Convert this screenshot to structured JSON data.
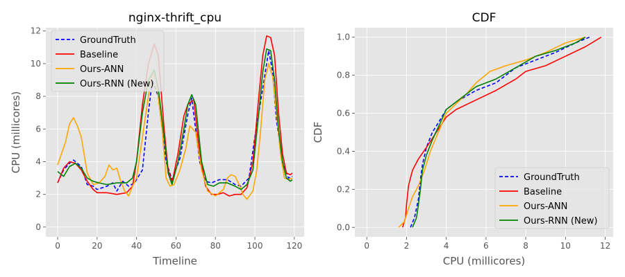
{
  "colors": {
    "groundtruth": "#0000ff",
    "baseline": "#ff0000",
    "ann": "#ffa500",
    "rnn": "#008000",
    "axes_bg": "#e5e5e5",
    "grid": "#ffffff",
    "tick_text": "#555555",
    "label_text": "#555555"
  },
  "chart_data": [
    {
      "type": "line",
      "title": "nginx-thrift_cpu",
      "xlabel": "Timeline",
      "ylabel": "CPU (millicores)",
      "xlim": [
        -6,
        125
      ],
      "ylim": [
        -0.6,
        12.2
      ],
      "xticks": [
        0,
        20,
        40,
        60,
        80,
        100,
        120
      ],
      "yticks": [
        0,
        2,
        4,
        6,
        8,
        10,
        12
      ],
      "grid": true,
      "legend_position": "top-left",
      "series": [
        {
          "name": "GroundTruth",
          "style": "dashed",
          "color": "#0000ff",
          "x": [
            0,
            3,
            6,
            8,
            12,
            15,
            18,
            20,
            25,
            28,
            30,
            33,
            36,
            39,
            43,
            46,
            48,
            51,
            55,
            58,
            62,
            66,
            68,
            72,
            75,
            78,
            82,
            86,
            90,
            93,
            97,
            100,
            104,
            107,
            109,
            111,
            114,
            117,
            119
          ],
          "y": [
            2.7,
            3.5,
            3.9,
            4.1,
            3.7,
            2.6,
            2.5,
            2.3,
            2.5,
            2.7,
            2.2,
            2.8,
            2.5,
            2.7,
            3.5,
            7.0,
            9.0,
            8.0,
            4.0,
            2.9,
            4.2,
            6.9,
            7.9,
            4.0,
            2.8,
            2.7,
            2.9,
            2.9,
            2.6,
            2.5,
            3.0,
            5.5,
            8.5,
            10.8,
            9.5,
            6.5,
            4.0,
            3.0,
            3.1
          ]
        },
        {
          "name": "Baseline",
          "style": "solid",
          "color": "#ff0000",
          "x": [
            0,
            3,
            6,
            9,
            12,
            15,
            18,
            20,
            25,
            30,
            35,
            38,
            40,
            43,
            46,
            49,
            51,
            54,
            56,
            58,
            61,
            64,
            66,
            69,
            72,
            75,
            78,
            81,
            84,
            87,
            90,
            93,
            96,
            99,
            102,
            104,
            106,
            108,
            110,
            112,
            114,
            116,
            118,
            119
          ],
          "y": [
            2.7,
            3.6,
            4.0,
            3.9,
            3.5,
            2.8,
            2.3,
            2.1,
            2.1,
            2.0,
            2.1,
            2.5,
            4.0,
            7.5,
            10.0,
            11.2,
            10.5,
            6.0,
            3.5,
            2.7,
            4.5,
            6.8,
            7.5,
            7.8,
            4.5,
            2.5,
            2.0,
            2.0,
            2.1,
            1.9,
            2.0,
            2.0,
            2.4,
            4.0,
            8.0,
            10.5,
            11.7,
            11.6,
            10.5,
            7.0,
            4.5,
            3.3,
            3.2,
            3.3
          ]
        },
        {
          "name": "Ours-ANN",
          "style": "solid",
          "color": "#ffa500",
          "x": [
            0,
            2,
            4,
            6,
            8,
            10,
            12,
            15,
            18,
            21,
            24,
            26,
            28,
            30,
            32,
            34,
            36,
            38,
            40,
            43,
            46,
            48,
            50,
            53,
            55,
            57,
            59,
            62,
            65,
            67,
            70,
            73,
            76,
            80,
            84,
            86,
            88,
            90,
            92,
            94,
            96,
            99,
            101,
            103,
            105,
            107,
            109,
            111,
            113,
            115,
            117,
            119
          ],
          "y": [
            3.8,
            4.5,
            5.2,
            6.3,
            6.7,
            6.2,
            5.5,
            3.3,
            2.6,
            2.7,
            3.1,
            3.8,
            3.5,
            3.6,
            2.8,
            2.2,
            1.9,
            2.5,
            3.0,
            5.5,
            8.0,
            9.5,
            9.0,
            6.0,
            3.0,
            2.5,
            2.6,
            3.5,
            4.8,
            6.2,
            5.8,
            3.5,
            2.2,
            1.9,
            2.3,
            3.0,
            3.2,
            3.1,
            2.6,
            2.0,
            1.7,
            2.2,
            3.5,
            6.0,
            9.0,
            10.0,
            9.2,
            7.0,
            4.5,
            3.0,
            2.9,
            3.0
          ]
        },
        {
          "name": "Ours-RNN (New)",
          "style": "solid",
          "color": "#008000",
          "x": [
            0,
            3,
            6,
            9,
            12,
            15,
            18,
            21,
            25,
            30,
            35,
            38,
            40,
            43,
            46,
            49,
            51,
            54,
            56,
            58,
            61,
            64,
            66,
            68,
            70,
            73,
            76,
            79,
            82,
            86,
            90,
            93,
            96,
            99,
            102,
            104,
            106,
            108,
            110,
            112,
            114,
            116,
            118,
            119
          ],
          "y": [
            3.4,
            3.1,
            3.7,
            3.9,
            3.6,
            3.0,
            2.8,
            2.7,
            2.6,
            2.7,
            2.7,
            3.0,
            4.0,
            7.0,
            9.0,
            9.6,
            8.5,
            5.5,
            3.3,
            2.6,
            4.0,
            6.0,
            7.5,
            8.1,
            7.5,
            4.0,
            2.6,
            2.5,
            2.7,
            2.7,
            2.5,
            2.3,
            2.6,
            3.5,
            7.0,
            9.5,
            10.9,
            10.8,
            9.0,
            6.0,
            4.0,
            3.0,
            2.8,
            2.9
          ]
        }
      ]
    },
    {
      "type": "line",
      "title": "CDF",
      "xlabel": "CPU (millicores)",
      "ylabel": "CDF",
      "xlim": [
        -0.6,
        12.4
      ],
      "ylim": [
        -0.05,
        1.05
      ],
      "xticks": [
        0,
        2,
        4,
        6,
        8,
        10,
        12
      ],
      "yticks": [
        0.0,
        0.2,
        0.4,
        0.6,
        0.8,
        1.0
      ],
      "grid": true,
      "legend_position": "bottom-right",
      "series": [
        {
          "name": "GroundTruth",
          "style": "dashed",
          "color": "#0000ff",
          "x": [
            2.2,
            2.4,
            2.6,
            2.7,
            2.8,
            3.0,
            3.3,
            3.6,
            4.0,
            4.5,
            5.5,
            6.5,
            7.5,
            8.5,
            9.5,
            10.5,
            11.2
          ],
          "y": [
            0.0,
            0.05,
            0.15,
            0.25,
            0.33,
            0.42,
            0.5,
            0.55,
            0.62,
            0.66,
            0.72,
            0.76,
            0.84,
            0.88,
            0.92,
            0.97,
            1.0
          ]
        },
        {
          "name": "Baseline",
          "style": "solid",
          "color": "#ff0000",
          "x": [
            1.8,
            1.95,
            2.0,
            2.1,
            2.3,
            2.6,
            3.0,
            3.5,
            4.0,
            4.5,
            5.5,
            6.5,
            7.5,
            8.0,
            9.0,
            10.0,
            11.0,
            11.8
          ],
          "y": [
            0.0,
            0.05,
            0.12,
            0.22,
            0.3,
            0.36,
            0.42,
            0.5,
            0.58,
            0.62,
            0.67,
            0.72,
            0.78,
            0.82,
            0.85,
            0.9,
            0.95,
            1.0
          ]
        },
        {
          "name": "Ours-ANN",
          "style": "solid",
          "color": "#ffa500",
          "x": [
            1.6,
            1.9,
            2.1,
            2.3,
            2.6,
            2.9,
            3.2,
            3.6,
            4.0,
            4.5,
            5.0,
            5.5,
            6.2,
            7.0,
            8.0,
            9.0,
            10.0,
            11.0
          ],
          "y": [
            0.0,
            0.03,
            0.1,
            0.16,
            0.22,
            0.3,
            0.4,
            0.5,
            0.6,
            0.65,
            0.7,
            0.76,
            0.82,
            0.85,
            0.88,
            0.92,
            0.97,
            1.0
          ]
        },
        {
          "name": "Ours-RNN (New)",
          "style": "solid",
          "color": "#008000",
          "x": [
            2.3,
            2.5,
            2.6,
            2.7,
            2.8,
            3.0,
            3.3,
            3.7,
            4.0,
            4.5,
            5.0,
            5.5,
            6.5,
            7.5,
            8.5,
            9.5,
            10.5,
            11.0
          ],
          "y": [
            0.0,
            0.05,
            0.12,
            0.2,
            0.3,
            0.38,
            0.46,
            0.55,
            0.62,
            0.66,
            0.7,
            0.74,
            0.78,
            0.84,
            0.9,
            0.93,
            0.97,
            1.0
          ]
        }
      ]
    }
  ]
}
